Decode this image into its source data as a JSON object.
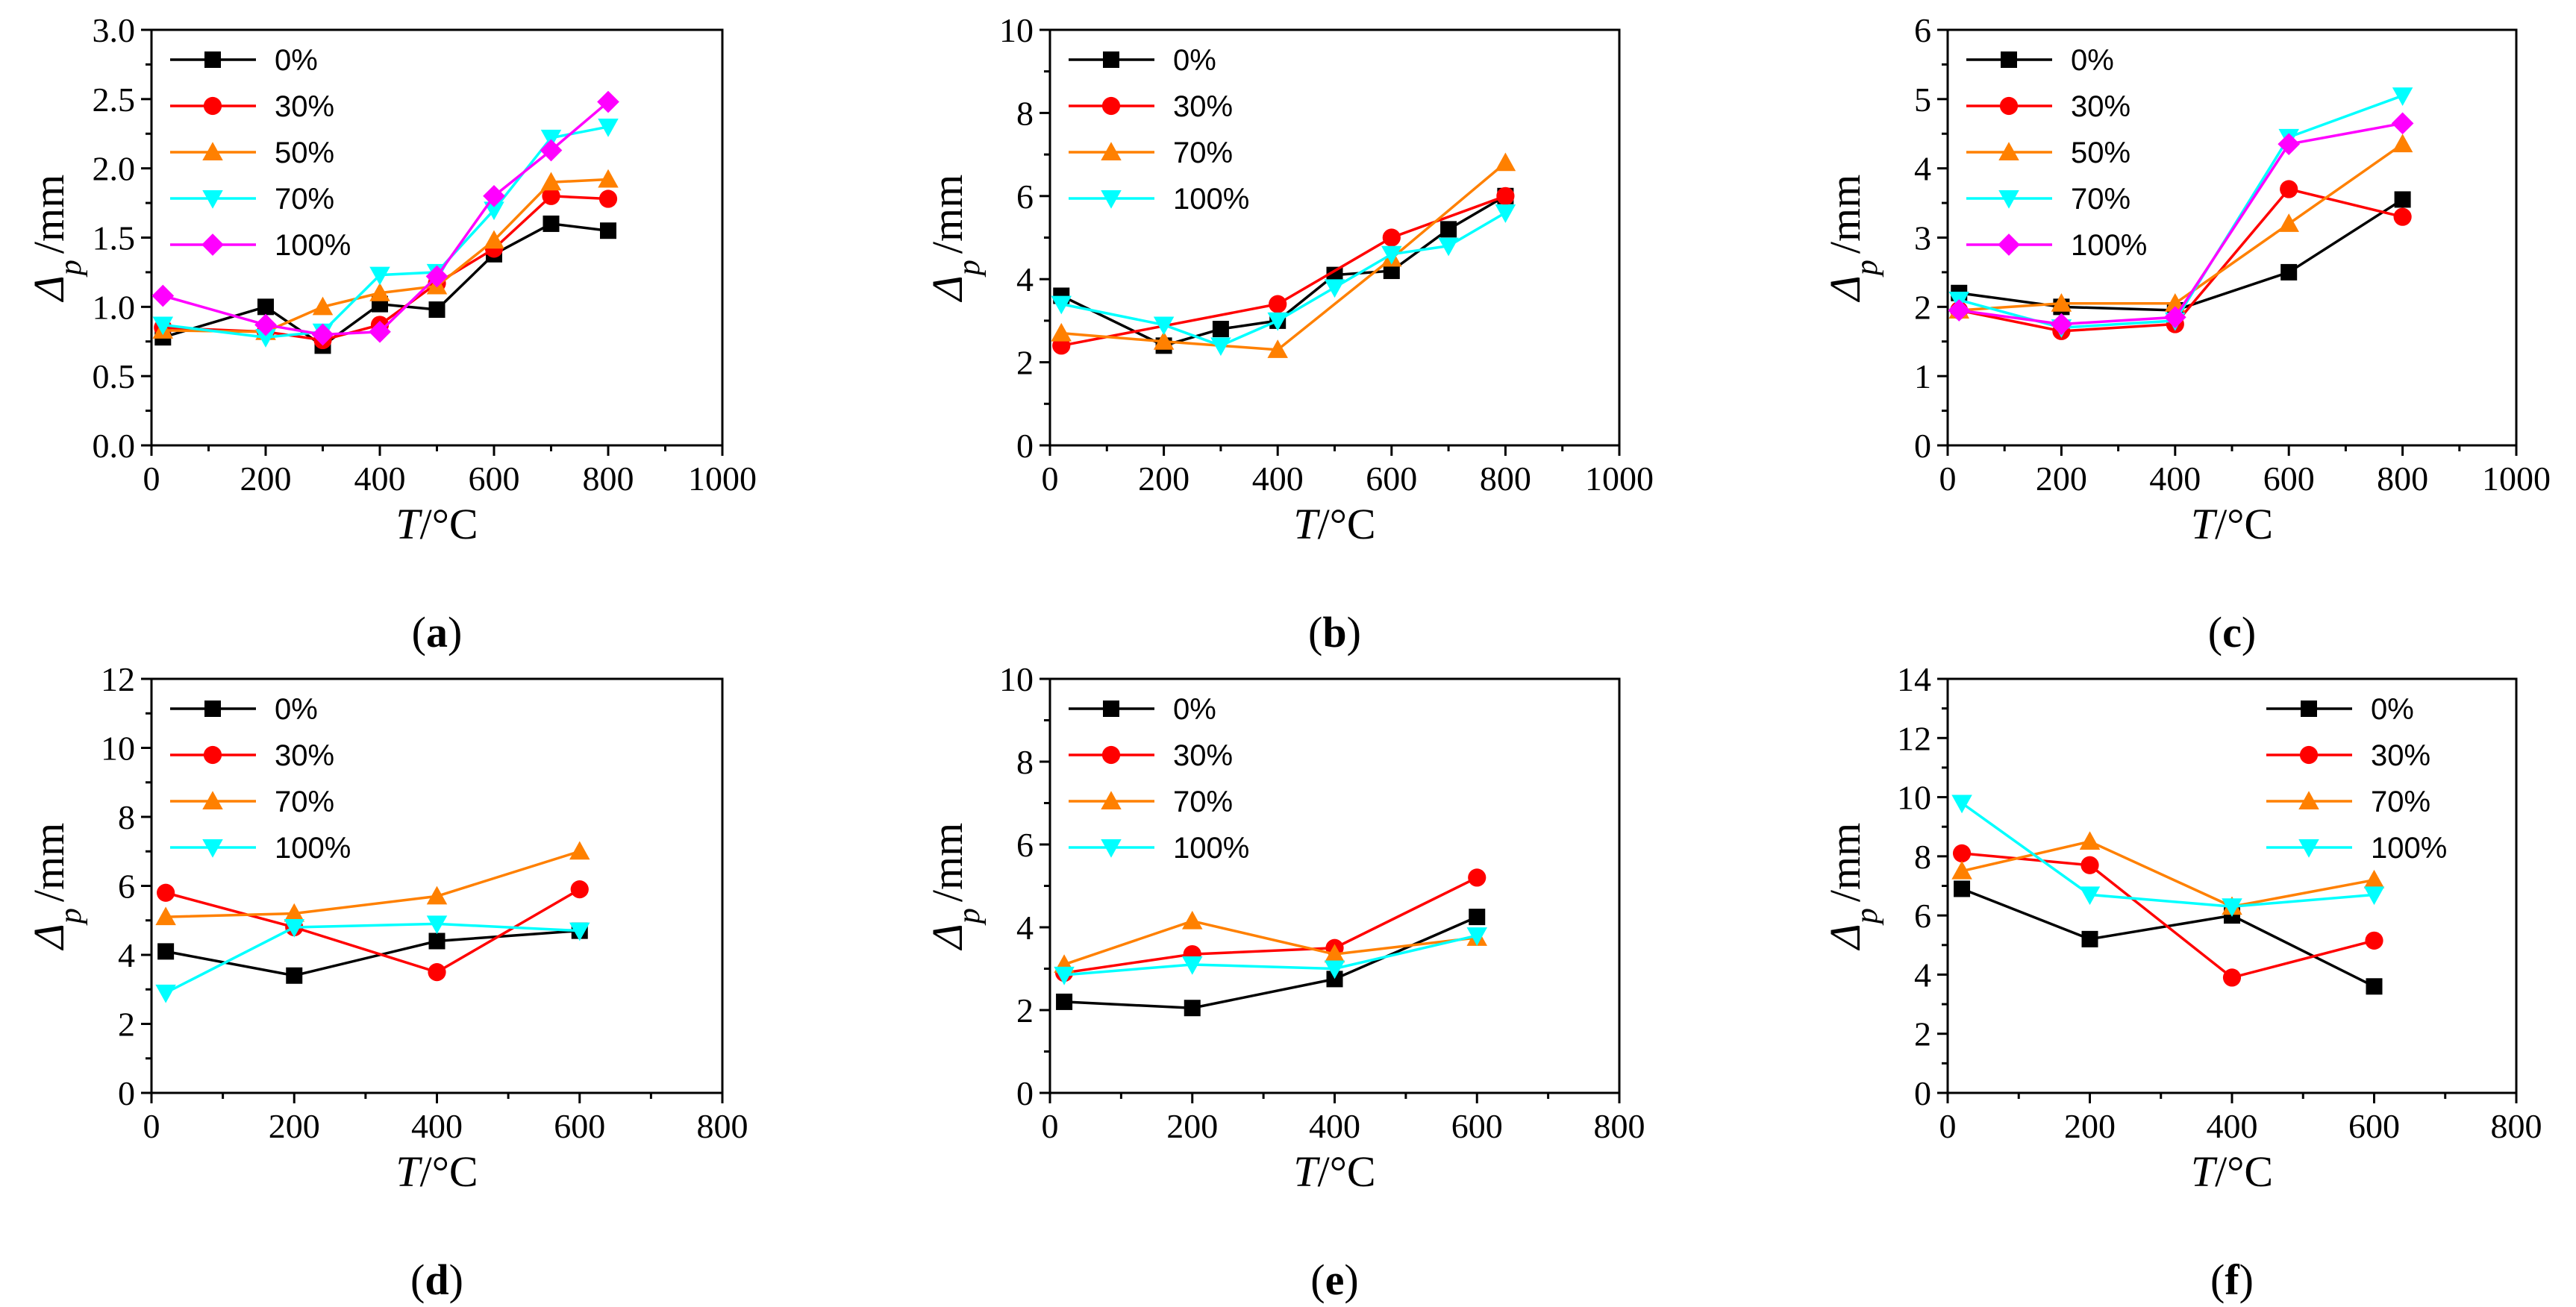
{
  "colors": {
    "0%": "#000000",
    "30%": "#ff0000",
    "50%": "#ff8000",
    "70%": "#ff8000",
    "100%": "#00ffff",
    "100%_magenta": "#ff00ff"
  },
  "chart_data": [
    {
      "type": "line",
      "panel_label": "(a)",
      "xlabel_sym": "T",
      "xlabel_unit": "/°C",
      "ylabel_sym": "Δ",
      "ylabel_sub": "p",
      "ylabel_unit": "/mm",
      "xlim": [
        0,
        1000
      ],
      "ylim": [
        0,
        3.0
      ],
      "xticks": [
        0,
        200,
        400,
        600,
        800,
        1000
      ],
      "yticks": [
        0.0,
        0.5,
        1.0,
        1.5,
        2.0,
        2.5,
        3.0
      ],
      "ytick_labels": [
        "0.0",
        "0.5",
        "1.0",
        "1.5",
        "2.0",
        "2.5",
        "3.0"
      ],
      "legend_position": "top-left",
      "series": [
        {
          "name": "0%",
          "marker": "square",
          "color": "#000000",
          "x": [
            20,
            200,
            300,
            400,
            500,
            600,
            700,
            800
          ],
          "y": [
            0.78,
            1.0,
            0.72,
            1.02,
            0.98,
            1.38,
            1.6,
            1.55
          ]
        },
        {
          "name": "30%",
          "marker": "circle",
          "color": "#ff0000",
          "x": [
            20,
            200,
            300,
            400,
            500,
            600,
            700,
            800
          ],
          "y": [
            0.85,
            0.82,
            0.76,
            0.87,
            1.17,
            1.42,
            1.8,
            1.78
          ]
        },
        {
          "name": "50%",
          "marker": "triangle-up",
          "color": "#ff8000",
          "x": [
            20,
            200,
            300,
            400,
            500,
            600,
            700,
            800
          ],
          "y": [
            0.83,
            0.82,
            1.0,
            1.1,
            1.15,
            1.48,
            1.9,
            1.92
          ]
        },
        {
          "name": "70%",
          "marker": "triangle-down",
          "color": "#00ffff",
          "x": [
            20,
            200,
            300,
            400,
            500,
            600,
            700,
            800
          ],
          "y": [
            0.87,
            0.78,
            0.82,
            1.23,
            1.25,
            1.7,
            2.22,
            2.3
          ]
        },
        {
          "name": "100%",
          "marker": "diamond",
          "color": "#ff00ff",
          "x": [
            20,
            200,
            300,
            400,
            500,
            600,
            700,
            800
          ],
          "y": [
            1.08,
            0.87,
            0.8,
            0.82,
            1.22,
            1.8,
            2.13,
            2.48
          ]
        }
      ]
    },
    {
      "type": "line",
      "panel_label": "(b)",
      "xlabel_sym": "T",
      "xlabel_unit": "/°C",
      "ylabel_sym": "Δ",
      "ylabel_sub": "p",
      "ylabel_unit": "/mm",
      "xlim": [
        0,
        1000
      ],
      "ylim": [
        0,
        10
      ],
      "xticks": [
        0,
        200,
        400,
        600,
        800,
        1000
      ],
      "yticks": [
        0,
        2,
        4,
        6,
        8,
        10
      ],
      "ytick_labels": [
        "0",
        "2",
        "4",
        "6",
        "8",
        "10"
      ],
      "legend_position": "top-left",
      "series": [
        {
          "name": "0%",
          "marker": "square",
          "color": "#000000",
          "x": [
            20,
            200,
            300,
            400,
            500,
            600,
            700,
            800
          ],
          "y": [
            3.6,
            2.4,
            2.8,
            3.0,
            4.1,
            4.2,
            5.2,
            6.0
          ]
        },
        {
          "name": "30%",
          "marker": "circle",
          "color": "#ff0000",
          "x": [
            20,
            400,
            600,
            800
          ],
          "y": [
            2.4,
            3.4,
            5.0,
            6.0
          ]
        },
        {
          "name": "70%",
          "marker": "triangle-up",
          "color": "#ff8000",
          "x": [
            20,
            200,
            400,
            600,
            800
          ],
          "y": [
            2.7,
            2.5,
            2.3,
            4.5,
            6.8
          ]
        },
        {
          "name": "100%",
          "marker": "triangle-down",
          "color": "#00ffff",
          "x": [
            20,
            200,
            300,
            400,
            500,
            600,
            700,
            800
          ],
          "y": [
            3.4,
            2.9,
            2.4,
            3.0,
            3.8,
            4.6,
            4.8,
            5.6
          ]
        }
      ]
    },
    {
      "type": "line",
      "panel_label": "(c)",
      "xlabel_sym": "T",
      "xlabel_unit": "/°C",
      "ylabel_sym": "Δ",
      "ylabel_sub": "p",
      "ylabel_unit": "/mm",
      "xlim": [
        0,
        1000
      ],
      "ylim": [
        0,
        6
      ],
      "xticks": [
        0,
        200,
        400,
        600,
        800,
        1000
      ],
      "yticks": [
        0,
        1,
        2,
        3,
        4,
        5,
        6
      ],
      "ytick_labels": [
        "0",
        "1",
        "2",
        "3",
        "4",
        "5",
        "6"
      ],
      "legend_position": "top-left",
      "series": [
        {
          "name": "0%",
          "marker": "square",
          "color": "#000000",
          "x": [
            20,
            200,
            400,
            600,
            800
          ],
          "y": [
            2.2,
            2.0,
            1.95,
            2.5,
            3.55
          ]
        },
        {
          "name": "30%",
          "marker": "circle",
          "color": "#ff0000",
          "x": [
            20,
            200,
            400,
            600,
            800
          ],
          "y": [
            1.95,
            1.65,
            1.75,
            3.7,
            3.3
          ]
        },
        {
          "name": "50%",
          "marker": "triangle-up",
          "color": "#ff8000",
          "x": [
            20,
            200,
            400,
            600,
            800
          ],
          "y": [
            1.95,
            2.05,
            2.05,
            3.2,
            4.35
          ]
        },
        {
          "name": "70%",
          "marker": "triangle-down",
          "color": "#00ffff",
          "x": [
            20,
            200,
            400,
            600,
            800
          ],
          "y": [
            2.1,
            1.7,
            1.8,
            4.45,
            5.05
          ]
        },
        {
          "name": "100%",
          "marker": "diamond",
          "color": "#ff00ff",
          "x": [
            20,
            200,
            400,
            600,
            800
          ],
          "y": [
            1.95,
            1.75,
            1.85,
            4.35,
            4.65
          ]
        }
      ]
    },
    {
      "type": "line",
      "panel_label": "(d)",
      "xlabel_sym": "T",
      "xlabel_unit": "/°C",
      "ylabel_sym": "Δ",
      "ylabel_sub": "p",
      "ylabel_unit": "/mm",
      "xlim": [
        0,
        800
      ],
      "ylim": [
        0,
        12
      ],
      "xticks": [
        0,
        200,
        400,
        600,
        800
      ],
      "yticks": [
        0,
        2,
        4,
        6,
        8,
        10,
        12
      ],
      "ytick_labels": [
        "0",
        "2",
        "4",
        "6",
        "8",
        "10",
        "12"
      ],
      "legend_position": "top-left",
      "series": [
        {
          "name": "0%",
          "marker": "square",
          "color": "#000000",
          "x": [
            20,
            200,
            400,
            600
          ],
          "y": [
            4.1,
            3.4,
            4.4,
            4.7
          ]
        },
        {
          "name": "30%",
          "marker": "circle",
          "color": "#ff0000",
          "x": [
            20,
            200,
            400,
            600
          ],
          "y": [
            5.8,
            4.8,
            3.5,
            5.9
          ]
        },
        {
          "name": "70%",
          "marker": "triangle-up",
          "color": "#ff8000",
          "x": [
            20,
            200,
            400,
            600
          ],
          "y": [
            5.1,
            5.2,
            5.7,
            7.0
          ]
        },
        {
          "name": "100%",
          "marker": "triangle-down",
          "color": "#00ffff",
          "x": [
            20,
            200,
            400,
            600
          ],
          "y": [
            2.9,
            4.8,
            4.9,
            4.7
          ]
        }
      ]
    },
    {
      "type": "line",
      "panel_label": "(e)",
      "xlabel_sym": "T",
      "xlabel_unit": "/°C",
      "ylabel_sym": "Δ",
      "ylabel_sub": "p",
      "ylabel_unit": "/mm",
      "xlim": [
        0,
        800
      ],
      "ylim": [
        0,
        10
      ],
      "xticks": [
        0,
        200,
        400,
        600,
        800
      ],
      "yticks": [
        0,
        2,
        4,
        6,
        8,
        10
      ],
      "ytick_labels": [
        "0",
        "2",
        "4",
        "6",
        "8",
        "10"
      ],
      "legend_position": "top-left",
      "series": [
        {
          "name": "0%",
          "marker": "square",
          "color": "#000000",
          "x": [
            20,
            200,
            400,
            600
          ],
          "y": [
            2.2,
            2.05,
            2.75,
            4.25
          ]
        },
        {
          "name": "30%",
          "marker": "circle",
          "color": "#ff0000",
          "x": [
            20,
            200,
            400,
            600
          ],
          "y": [
            2.9,
            3.35,
            3.5,
            5.2
          ]
        },
        {
          "name": "70%",
          "marker": "triangle-up",
          "color": "#ff8000",
          "x": [
            20,
            200,
            400,
            600
          ],
          "y": [
            3.1,
            4.15,
            3.35,
            3.75
          ]
        },
        {
          "name": "100%",
          "marker": "triangle-down",
          "color": "#00ffff",
          "x": [
            20,
            200,
            400,
            600
          ],
          "y": [
            2.85,
            3.1,
            3.0,
            3.8
          ]
        }
      ]
    },
    {
      "type": "line",
      "panel_label": "(f)",
      "xlabel_sym": "T",
      "xlabel_unit": "/°C",
      "ylabel_sym": "Δ",
      "ylabel_sub": "p",
      "ylabel_unit": "/mm",
      "xlim": [
        0,
        800
      ],
      "ylim": [
        0,
        14
      ],
      "xticks": [
        0,
        200,
        400,
        600,
        800
      ],
      "yticks": [
        0,
        2,
        4,
        6,
        8,
        10,
        12,
        14
      ],
      "ytick_labels": [
        "0",
        "2",
        "4",
        "6",
        "8",
        "10",
        "12",
        "14"
      ],
      "legend_position": "top-right",
      "series": [
        {
          "name": "0%",
          "marker": "square",
          "color": "#000000",
          "x": [
            20,
            200,
            400,
            600
          ],
          "y": [
            6.9,
            5.2,
            6.0,
            3.6
          ]
        },
        {
          "name": "30%",
          "marker": "circle",
          "color": "#ff0000",
          "x": [
            20,
            200,
            400,
            600
          ],
          "y": [
            8.1,
            7.7,
            3.9,
            5.15
          ]
        },
        {
          "name": "70%",
          "marker": "triangle-up",
          "color": "#ff8000",
          "x": [
            20,
            200,
            400,
            600
          ],
          "y": [
            7.5,
            8.5,
            6.3,
            7.2
          ]
        },
        {
          "name": "100%",
          "marker": "triangle-down",
          "color": "#00ffff",
          "x": [
            20,
            200,
            400,
            600
          ],
          "y": [
            9.8,
            6.7,
            6.3,
            6.7
          ]
        }
      ]
    }
  ]
}
